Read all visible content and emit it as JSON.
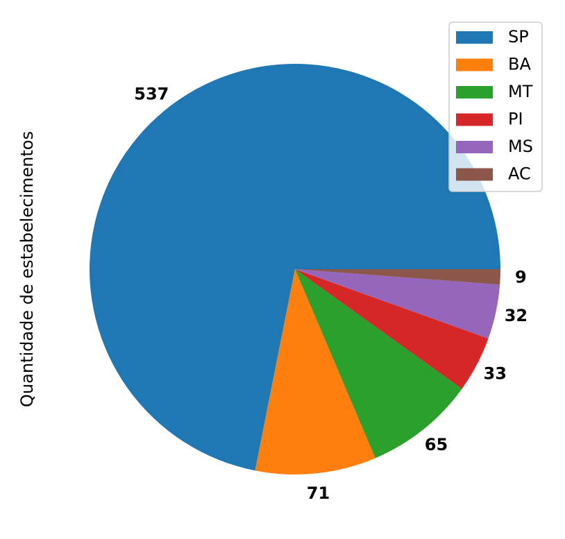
{
  "chart_data": {
    "type": "pie",
    "ylabel": "Quantidade de estabelecimentos",
    "legend_position": "top-right",
    "start_angle": "0 (counterclockwise)",
    "slices": [
      {
        "label": "SP",
        "value": 537,
        "display": "537",
        "color": "#1f77b4"
      },
      {
        "label": "BA",
        "value": 71,
        "display": "71",
        "color": "#ff7f0e"
      },
      {
        "label": "MT",
        "value": 65,
        "display": "65",
        "color": "#2ca02c"
      },
      {
        "label": "PI",
        "value": 33,
        "display": "33",
        "color": "#d62728"
      },
      {
        "label": "MS",
        "value": 32,
        "display": "32",
        "color": "#9467bd"
      },
      {
        "label": "AC",
        "value": 9,
        "display": "9",
        "color": "#8c564b"
      }
    ]
  }
}
